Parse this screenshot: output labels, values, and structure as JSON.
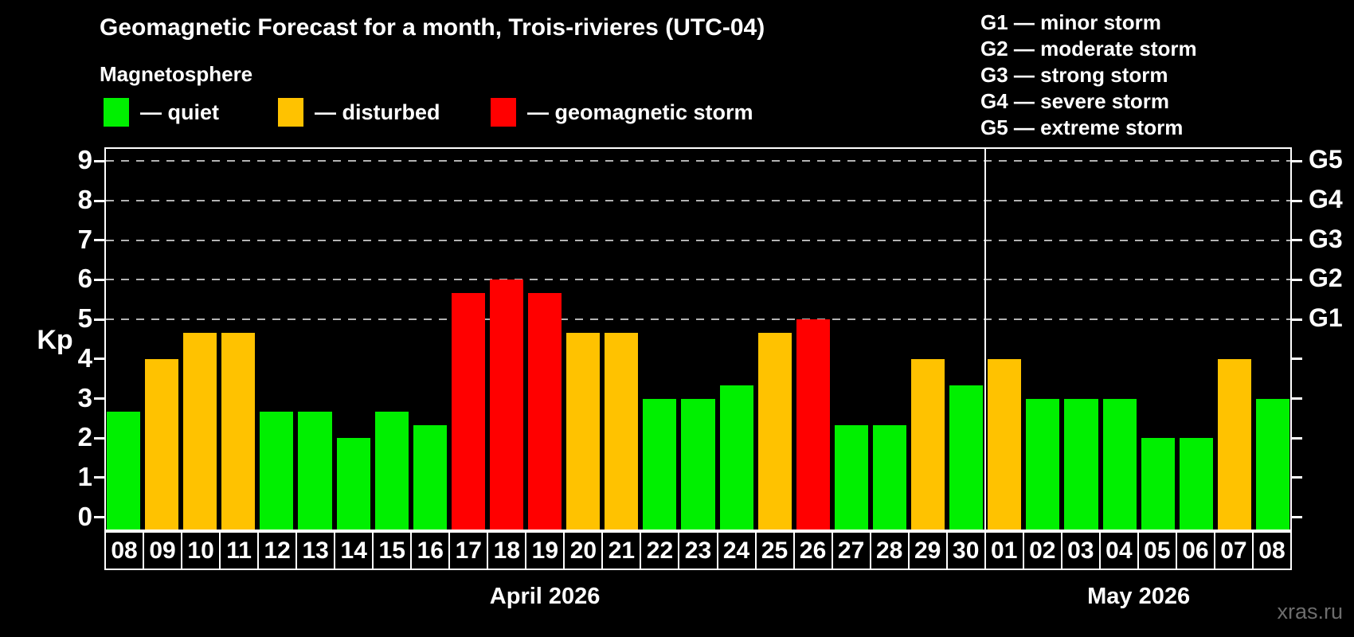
{
  "watermark": "xras.ru",
  "chart_data": {
    "type": "bar",
    "title": "Geomagnetic Forecast for a month, Trois-rivieres (UTC-04)",
    "subtitle": "Magnetosphere",
    "ylabel": "Kp",
    "xlabel": "",
    "ylim": [
      0,
      9
    ],
    "y_overshoot": 0.35,
    "y_ticks": [
      0,
      1,
      2,
      3,
      4,
      5,
      6,
      7,
      8,
      9
    ],
    "grid_levels": [
      5,
      6,
      7,
      8,
      9
    ],
    "grid_on": true,
    "right_axis_labels": {
      "5": "G1",
      "6": "G2",
      "7": "G3",
      "8": "G4",
      "9": "G5"
    },
    "legend": [
      {
        "key": "quiet",
        "label": "— quiet"
      },
      {
        "key": "disturbed",
        "label": "— disturbed"
      },
      {
        "key": "storm",
        "label": "— geomagnetic storm"
      }
    ],
    "storm_scale_legend": [
      "G1 — minor storm",
      "G2 — moderate storm",
      "G3 — strong storm",
      "G4 — severe storm",
      "G5 — extreme storm"
    ],
    "categories": [
      "08",
      "09",
      "10",
      "11",
      "12",
      "13",
      "14",
      "15",
      "16",
      "17",
      "18",
      "19",
      "20",
      "21",
      "22",
      "23",
      "24",
      "25",
      "26",
      "27",
      "28",
      "29",
      "30",
      "01",
      "02",
      "03",
      "04",
      "05",
      "06",
      "07",
      "08"
    ],
    "values": [
      2.67,
      4,
      4.67,
      4.67,
      2.67,
      2.67,
      2,
      2.67,
      2.33,
      5.67,
      6,
      5.67,
      4.67,
      4.67,
      3,
      3,
      3.33,
      4.67,
      5,
      2.33,
      2.33,
      4,
      3.33,
      4,
      3,
      3,
      3,
      2,
      2,
      4,
      3
    ],
    "states": [
      "quiet",
      "disturbed",
      "disturbed",
      "disturbed",
      "quiet",
      "quiet",
      "quiet",
      "quiet",
      "quiet",
      "storm",
      "storm",
      "storm",
      "disturbed",
      "disturbed",
      "quiet",
      "quiet",
      "quiet",
      "disturbed",
      "storm",
      "quiet",
      "quiet",
      "disturbed",
      "quiet",
      "disturbed",
      "quiet",
      "quiet",
      "quiet",
      "quiet",
      "quiet",
      "disturbed",
      "quiet"
    ],
    "colors": {
      "quiet": "#00f000",
      "disturbed": "#ffc200",
      "storm": "#ff0000"
    },
    "axis_color": "#ffffff",
    "grid_color": "#b3b3b3",
    "background": "#000000",
    "month_groups": [
      {
        "label": "April 2026",
        "count": 23
      },
      {
        "label": "May 2026",
        "count": 8
      }
    ]
  }
}
